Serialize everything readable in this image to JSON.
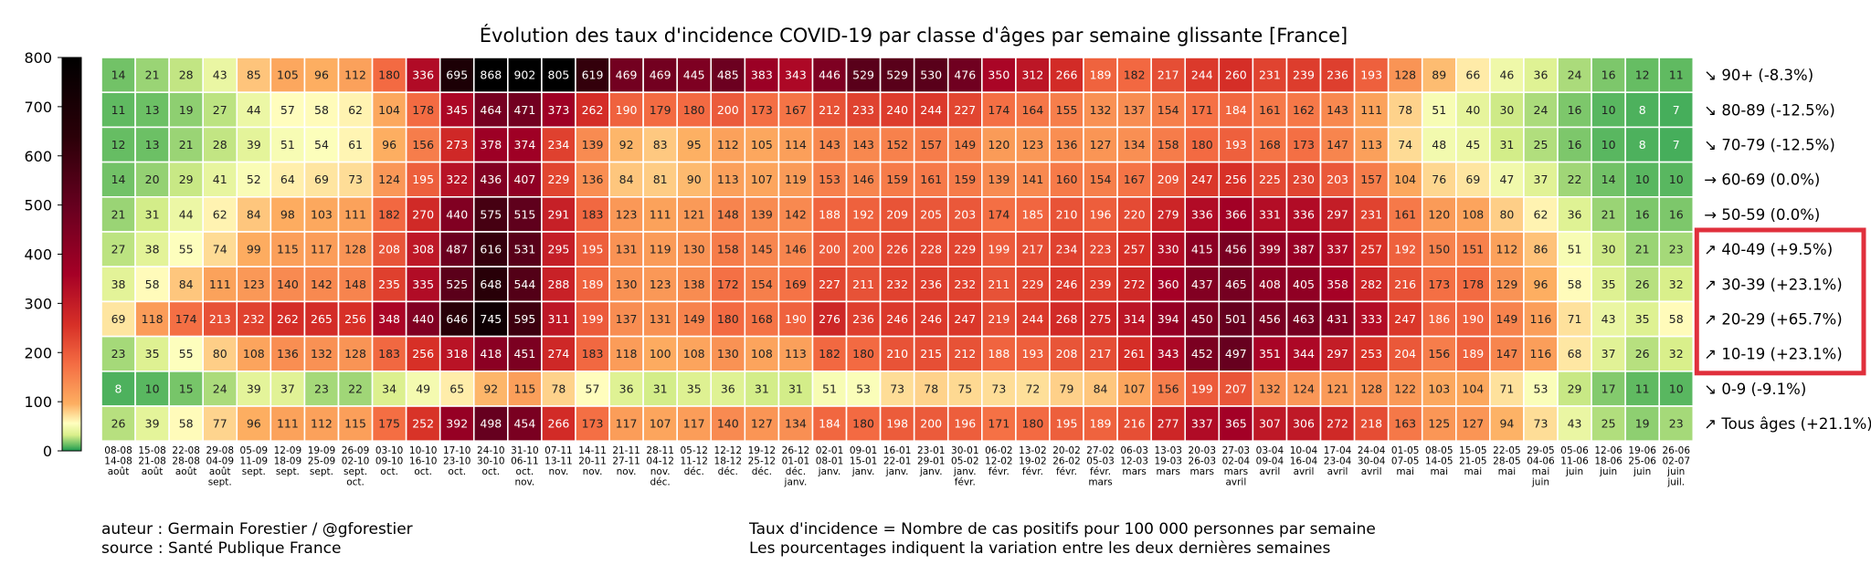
{
  "chart_data": {
    "type": "heatmap",
    "title": "Évolution des taux d'incidence COVID-19 par classe d'âges par semaine glissante [France]",
    "colorbar": {
      "min": 0,
      "max": 800,
      "ticks": [
        "0",
        "100",
        "200",
        "300",
        "400",
        "500",
        "600",
        "700",
        "800"
      ]
    },
    "weeks": [
      [
        "08-08",
        "14-08",
        "août"
      ],
      [
        "15-08",
        "21-08",
        "août"
      ],
      [
        "22-08",
        "28-08",
        "août"
      ],
      [
        "29-08",
        "04-09",
        "août",
        "sept."
      ],
      [
        "05-09",
        "11-09",
        "sept."
      ],
      [
        "12-09",
        "18-09",
        "sept."
      ],
      [
        "19-09",
        "25-09",
        "sept."
      ],
      [
        "26-09",
        "02-10",
        "sept.",
        "oct."
      ],
      [
        "03-10",
        "09-10",
        "oct."
      ],
      [
        "10-10",
        "16-10",
        "oct."
      ],
      [
        "17-10",
        "23-10",
        "oct."
      ],
      [
        "24-10",
        "30-10",
        "oct."
      ],
      [
        "31-10",
        "06-11",
        "oct.",
        "nov."
      ],
      [
        "07-11",
        "13-11",
        "nov."
      ],
      [
        "14-11",
        "20-11",
        "nov."
      ],
      [
        "21-11",
        "27-11",
        "nov."
      ],
      [
        "28-11",
        "04-12",
        "nov.",
        "déc."
      ],
      [
        "05-12",
        "11-12",
        "déc."
      ],
      [
        "12-12",
        "18-12",
        "déc."
      ],
      [
        "19-12",
        "25-12",
        "déc."
      ],
      [
        "26-12",
        "01-01",
        "déc.",
        "janv."
      ],
      [
        "02-01",
        "08-01",
        "janv."
      ],
      [
        "09-01",
        "15-01",
        "janv."
      ],
      [
        "16-01",
        "22-01",
        "janv."
      ],
      [
        "23-01",
        "29-01",
        "janv."
      ],
      [
        "30-01",
        "05-02",
        "janv.",
        "févr."
      ],
      [
        "06-02",
        "12-02",
        "févr."
      ],
      [
        "13-02",
        "19-02",
        "févr."
      ],
      [
        "20-02",
        "26-02",
        "févr."
      ],
      [
        "27-02",
        "05-03",
        "févr.",
        "mars"
      ],
      [
        "06-03",
        "12-03",
        "mars"
      ],
      [
        "13-03",
        "19-03",
        "mars"
      ],
      [
        "20-03",
        "26-03",
        "mars"
      ],
      [
        "27-03",
        "02-04",
        "mars",
        "avril"
      ],
      [
        "03-04",
        "09-04",
        "avril"
      ],
      [
        "10-04",
        "16-04",
        "avril"
      ],
      [
        "17-04",
        "23-04",
        "avril"
      ],
      [
        "24-04",
        "30-04",
        "avril"
      ],
      [
        "01-05",
        "07-05",
        "mai"
      ],
      [
        "08-05",
        "14-05",
        "mai"
      ],
      [
        "15-05",
        "21-05",
        "mai"
      ],
      [
        "22-05",
        "28-05",
        "mai"
      ],
      [
        "29-05",
        "04-06",
        "mai",
        "juin"
      ],
      [
        "05-06",
        "11-06",
        "juin"
      ],
      [
        "12-06",
        "18-06",
        "juin"
      ],
      [
        "19-06",
        "25-06",
        "juin"
      ],
      [
        "26-06",
        "02-07",
        "juin",
        "juil."
      ]
    ],
    "rows": [
      {
        "label": "↘ 90+ (-8.3%)",
        "highlighted": false,
        "values": [
          14,
          21,
          28,
          43,
          85,
          105,
          96,
          112,
          180,
          336,
          695,
          868,
          902,
          805,
          619,
          469,
          469,
          445,
          485,
          383,
          343,
          446,
          529,
          529,
          530,
          476,
          350,
          312,
          266,
          189,
          182,
          217,
          244,
          260,
          231,
          239,
          236,
          193,
          128,
          89,
          66,
          46,
          36,
          24,
          16,
          12,
          11
        ]
      },
      {
        "label": "↘ 80-89 (-12.5%)",
        "highlighted": false,
        "values": [
          11,
          13,
          19,
          27,
          44,
          57,
          58,
          62,
          104,
          178,
          345,
          464,
          471,
          373,
          262,
          190,
          179,
          180,
          200,
          173,
          167,
          212,
          233,
          240,
          244,
          227,
          174,
          164,
          155,
          132,
          137,
          154,
          171,
          184,
          161,
          162,
          143,
          111,
          78,
          51,
          40,
          30,
          24,
          16,
          10,
          8,
          7
        ]
      },
      {
        "label": "↘ 70-79 (-12.5%)",
        "highlighted": false,
        "values": [
          12,
          13,
          21,
          28,
          39,
          51,
          54,
          61,
          96,
          156,
          273,
          378,
          374,
          234,
          139,
          92,
          83,
          95,
          112,
          105,
          114,
          143,
          143,
          152,
          157,
          149,
          120,
          123,
          136,
          127,
          134,
          158,
          180,
          193,
          168,
          173,
          147,
          113,
          74,
          48,
          45,
          31,
          25,
          16,
          10,
          8,
          7
        ]
      },
      {
        "label": "→ 60-69 (0.0%)",
        "highlighted": false,
        "values": [
          14,
          20,
          29,
          41,
          52,
          64,
          69,
          73,
          124,
          195,
          322,
          436,
          407,
          229,
          136,
          84,
          81,
          90,
          113,
          107,
          119,
          153,
          146,
          159,
          161,
          159,
          139,
          141,
          160,
          154,
          167,
          209,
          247,
          256,
          225,
          230,
          203,
          157,
          104,
          76,
          69,
          47,
          37,
          22,
          14,
          10,
          10
        ]
      },
      {
        "label": "→ 50-59 (0.0%)",
        "highlighted": false,
        "values": [
          21,
          31,
          44,
          62,
          84,
          98,
          103,
          111,
          182,
          270,
          440,
          575,
          515,
          291,
          183,
          123,
          111,
          121,
          148,
          139,
          142,
          188,
          192,
          209,
          205,
          203,
          174,
          185,
          210,
          196,
          220,
          279,
          336,
          366,
          331,
          336,
          297,
          231,
          161,
          120,
          108,
          80,
          62,
          36,
          21,
          16,
          16
        ]
      },
      {
        "label": "↗ 40-49 (+9.5%)",
        "highlighted": true,
        "values": [
          27,
          38,
          55,
          74,
          99,
          115,
          117,
          128,
          208,
          308,
          487,
          616,
          531,
          295,
          195,
          131,
          119,
          130,
          158,
          145,
          146,
          200,
          200,
          226,
          228,
          229,
          199,
          217,
          234,
          223,
          257,
          330,
          415,
          456,
          399,
          387,
          337,
          257,
          192,
          150,
          151,
          112,
          86,
          51,
          30,
          21,
          23
        ]
      },
      {
        "label": "↗ 30-39 (+23.1%)",
        "highlighted": true,
        "values": [
          38,
          58,
          84,
          111,
          123,
          140,
          142,
          148,
          235,
          335,
          525,
          648,
          544,
          288,
          189,
          130,
          123,
          138,
          172,
          154,
          169,
          227,
          211,
          232,
          236,
          232,
          211,
          229,
          246,
          239,
          272,
          360,
          437,
          465,
          408,
          405,
          358,
          282,
          216,
          173,
          178,
          129,
          96,
          58,
          35,
          26,
          32
        ]
      },
      {
        "label": "↗ 20-29 (+65.7%)",
        "highlighted": true,
        "values": [
          69,
          118,
          174,
          213,
          232,
          262,
          265,
          256,
          348,
          440,
          646,
          745,
          595,
          311,
          199,
          137,
          131,
          149,
          180,
          168,
          190,
          276,
          236,
          246,
          246,
          247,
          219,
          244,
          268,
          275,
          314,
          394,
          450,
          501,
          456,
          463,
          431,
          333,
          247,
          186,
          190,
          149,
          116,
          71,
          43,
          35,
          58
        ]
      },
      {
        "label": "↗ 10-19 (+23.1%)",
        "highlighted": true,
        "values": [
          23,
          35,
          55,
          80,
          108,
          136,
          132,
          128,
          183,
          256,
          318,
          418,
          451,
          274,
          183,
          118,
          100,
          108,
          130,
          108,
          113,
          182,
          180,
          210,
          215,
          212,
          188,
          193,
          208,
          217,
          261,
          343,
          452,
          497,
          351,
          344,
          297,
          253,
          204,
          156,
          189,
          147,
          116,
          68,
          37,
          26,
          32
        ]
      },
      {
        "label": "↘ 0-9 (-9.1%)",
        "highlighted": false,
        "values": [
          8,
          10,
          15,
          24,
          39,
          37,
          23,
          22,
          34,
          49,
          65,
          92,
          115,
          78,
          57,
          36,
          31,
          35,
          36,
          31,
          31,
          51,
          53,
          73,
          78,
          75,
          73,
          72,
          79,
          84,
          107,
          156,
          199,
          207,
          132,
          124,
          121,
          128,
          122,
          103,
          104,
          71,
          53,
          29,
          17,
          11,
          10
        ]
      },
      {
        "label": "↗ Tous âges (+21.1%)",
        "highlighted": false,
        "values": [
          26,
          39,
          58,
          77,
          96,
          111,
          112,
          115,
          175,
          252,
          392,
          498,
          454,
          266,
          173,
          117,
          107,
          117,
          140,
          127,
          134,
          184,
          180,
          198,
          200,
          196,
          171,
          180,
          195,
          189,
          216,
          277,
          337,
          365,
          307,
          306,
          272,
          218,
          163,
          125,
          127,
          94,
          73,
          43,
          25,
          19,
          23
        ]
      }
    ],
    "highlight_color": "#e0303c"
  },
  "footer": {
    "author": "auteur : Germain Forestier / @gforestier",
    "source": "source : Santé Publique France",
    "definition": "Taux d'incidence = Nombre de cas positifs pour 100 000 personnes par semaine",
    "note": "Les pourcentages indiquent la variation entre les deux dernières semaines"
  }
}
